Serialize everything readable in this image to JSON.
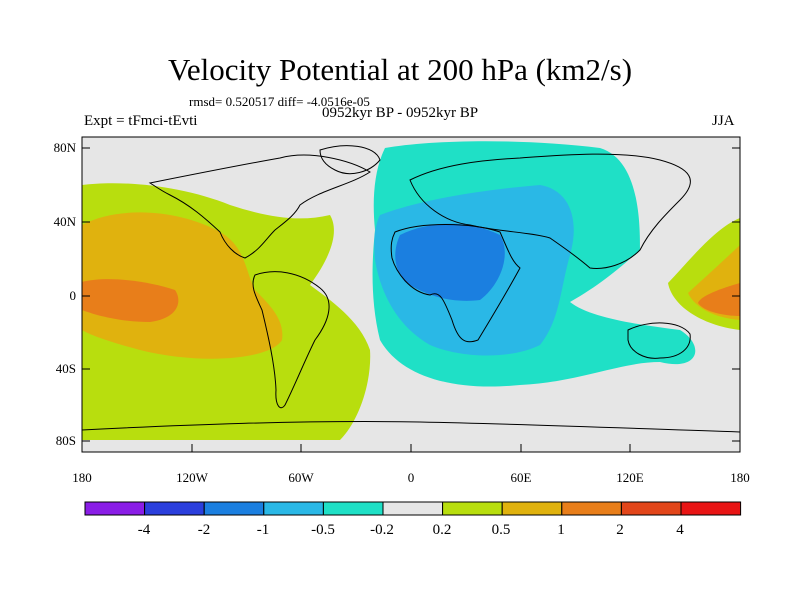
{
  "title": "Velocity Potential at 200 hPa (km2/s)",
  "stats": "rmsd= 0.520517 diff= -4.0516e-05",
  "experiment": "Expt = tFmci-tEvti",
  "period": "0952kyr BP - 0952kyr BP",
  "season": "JJA",
  "lat_ticks": [
    "80N",
    "40N",
    "0",
    "40S",
    "80S"
  ],
  "lon_ticks": [
    "180",
    "120W",
    "60W",
    "0",
    "60E",
    "120E",
    "180"
  ],
  "colorbar": {
    "colors": [
      "#8a1de6",
      "#2b3fdc",
      "#1b7fe0",
      "#2ab8e6",
      "#1fe0c6",
      "#e6e6e6",
      "#b8de0e",
      "#e0b20e",
      "#e87e1a",
      "#e2461a",
      "#e81414"
    ],
    "labels": [
      "-4",
      "-2",
      "-1",
      "-0.5",
      "-0.2",
      "0.2",
      "0.5",
      "1",
      "2",
      "4"
    ]
  }
}
